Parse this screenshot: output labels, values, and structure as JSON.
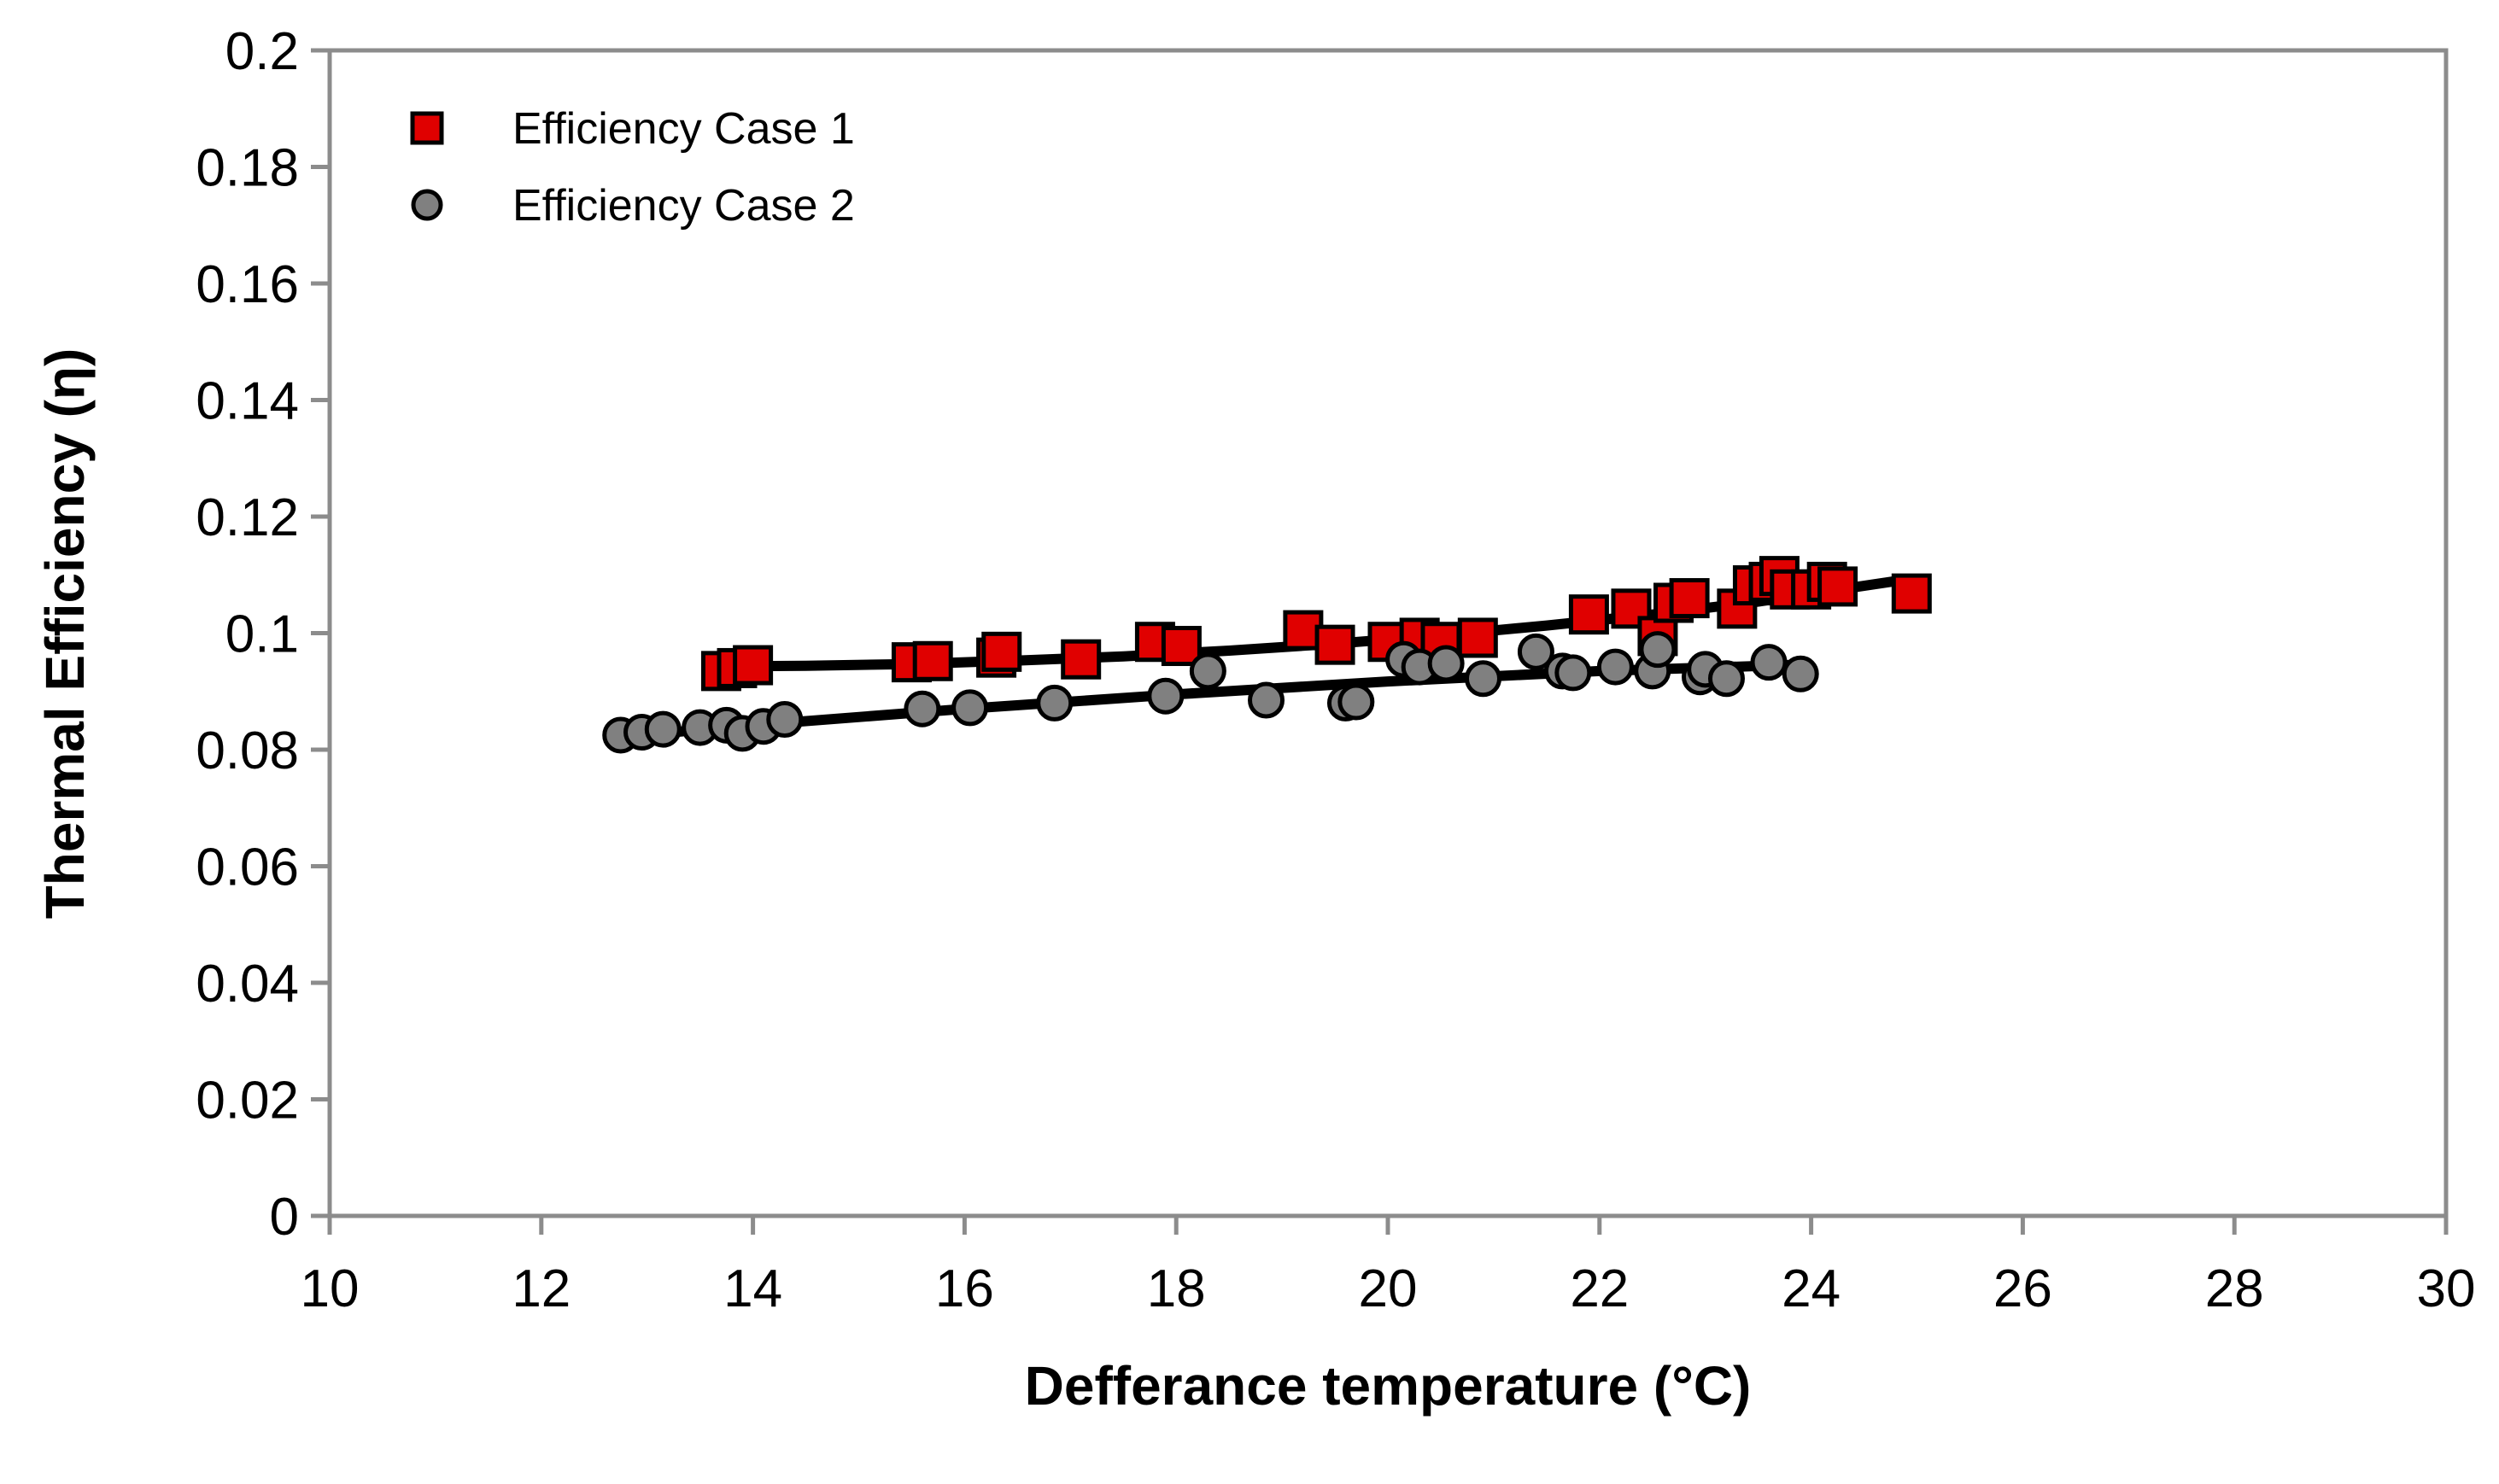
{
  "chart_data": {
    "type": "scatter",
    "title": "",
    "xlabel": "Defferance temperature (°C)",
    "ylabel": "Thermal Efficiency (η)",
    "xlim": [
      10,
      30
    ],
    "ylim": [
      0,
      0.2
    ],
    "xticks": [
      "10",
      "12",
      "14",
      "16",
      "18",
      "20",
      "22",
      "24",
      "26",
      "28",
      "30"
    ],
    "yticks": [
      "0",
      "0.02",
      "0.04",
      "0.06",
      "0.08",
      "0.1",
      "0.12",
      "0.14",
      "0.16",
      "0.18",
      "0.2"
    ],
    "grid": false,
    "legend_position": "top-left",
    "series": [
      {
        "name": "Efficiency Case 1",
        "marker": "square",
        "color": "#e00000",
        "x": [
          13.7,
          13.85,
          14.0,
          15.5,
          15.7,
          16.3,
          16.35,
          17.1,
          17.8,
          18.05,
          19.2,
          19.5,
          20.0,
          20.3,
          20.5,
          20.85,
          21.9,
          22.3,
          22.55,
          22.7,
          22.85,
          23.3,
          23.45,
          23.6,
          23.7,
          23.8,
          24.0,
          24.15,
          24.25,
          24.95
        ],
        "y": [
          0.0935,
          0.094,
          0.0945,
          0.095,
          0.0952,
          0.0958,
          0.0968,
          0.0955,
          0.0985,
          0.0978,
          0.1005,
          0.098,
          0.0985,
          0.0992,
          0.0985,
          0.0992,
          0.1032,
          0.1042,
          0.0995,
          0.1052,
          0.106,
          0.1042,
          0.1082,
          0.1088,
          0.1098,
          0.1075,
          0.1075,
          0.1088,
          0.108,
          0.1068
        ]
      },
      {
        "name": "Efficiency Case 2",
        "marker": "circle",
        "color": "#808080",
        "x": [
          12.75,
          12.95,
          13.15,
          13.5,
          13.75,
          13.9,
          14.1,
          14.3,
          15.6,
          16.05,
          16.85,
          17.9,
          18.3,
          18.85,
          19.6,
          19.7,
          20.15,
          20.3,
          20.55,
          20.9,
          21.4,
          21.65,
          21.75,
          22.15,
          22.5,
          22.55,
          22.95,
          23.0,
          23.2,
          23.6,
          23.9
        ],
        "y": [
          0.0825,
          0.083,
          0.0835,
          0.0838,
          0.0842,
          0.0828,
          0.084,
          0.0852,
          0.087,
          0.0872,
          0.088,
          0.0892,
          0.0935,
          0.0885,
          0.088,
          0.0882,
          0.0955,
          0.0942,
          0.0948,
          0.0922,
          0.0968,
          0.0935,
          0.0932,
          0.0942,
          0.0935,
          0.0972,
          0.0925,
          0.0938,
          0.0922,
          0.095,
          0.093
        ]
      }
    ],
    "trendlines": [
      {
        "series": "Efficiency Case 1",
        "x": [
          13.7,
          14.5,
          15.5,
          16.5,
          17.5,
          18.5,
          19.5,
          20.5,
          21.5,
          22.5,
          23.5,
          24.9
        ],
        "y": [
          0.0943,
          0.0944,
          0.0947,
          0.0953,
          0.096,
          0.097,
          0.0982,
          0.0996,
          0.1013,
          0.1032,
          0.1054,
          0.1092
        ]
      },
      {
        "series": "Efficiency Case 2",
        "x": [
          12.75,
          14,
          16,
          18,
          20,
          22,
          23.9
        ],
        "y": [
          0.0822,
          0.0842,
          0.087,
          0.0895,
          0.0917,
          0.0935,
          0.0946
        ]
      }
    ]
  }
}
